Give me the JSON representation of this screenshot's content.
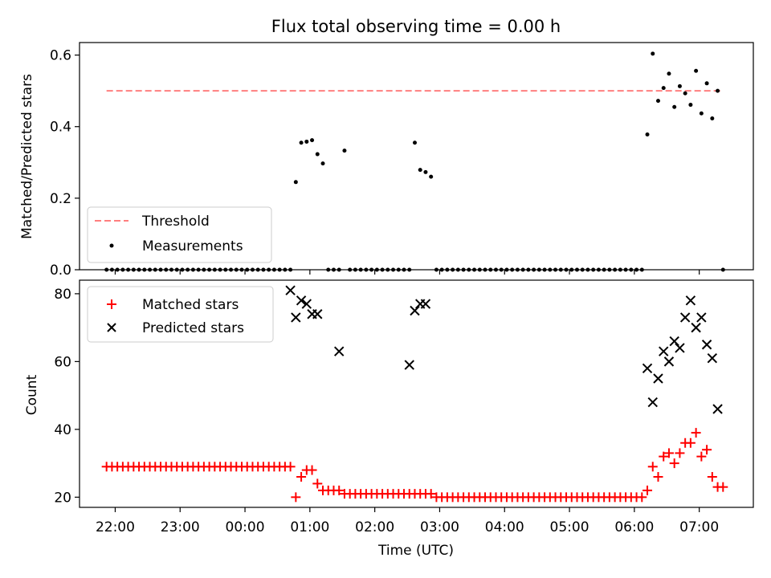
{
  "chart_data": [
    {
      "type": "scatter",
      "title": "Flux total observing time = 0.00 h",
      "xlabel": "",
      "ylabel": "Matched/Predicted stars",
      "xlim": [
        "21:27",
        "07:50"
      ],
      "ylim": [
        0.0,
        0.635
      ],
      "yticks": [
        0.0,
        0.2,
        0.4,
        0.6
      ],
      "ytick_labels": [
        "0.0",
        "0.2",
        "0.4",
        "0.6"
      ],
      "threshold": {
        "name": "Threshold",
        "color": "#ff7f7f",
        "value": 0.5,
        "x_range": [
          "21:52",
          "07:20"
        ]
      },
      "series": [
        {
          "name": "Measurements",
          "color": "#000000",
          "marker": "dot",
          "x": [
            "21:52",
            "21:57",
            "22:02",
            "22:07",
            "22:12",
            "22:17",
            "22:22",
            "22:27",
            "22:32",
            "22:37",
            "22:42",
            "22:47",
            "22:52",
            "22:57",
            "23:02",
            "23:07",
            "23:12",
            "23:17",
            "23:22",
            "23:27",
            "23:32",
            "23:37",
            "23:42",
            "23:47",
            "23:52",
            "23:57",
            "00:02",
            "00:07",
            "00:12",
            "00:17",
            "00:22",
            "00:27",
            "00:32",
            "00:37",
            "00:42",
            "00:47",
            "00:52",
            "00:57",
            "01:02",
            "01:07",
            "01:12",
            "01:17",
            "01:22",
            "01:27",
            "01:32",
            "01:37",
            "01:42",
            "01:47",
            "01:52",
            "01:57",
            "02:02",
            "02:07",
            "02:12",
            "02:17",
            "02:22",
            "02:27",
            "02:32",
            "02:37",
            "02:42",
            "02:47",
            "02:52",
            "02:57",
            "03:02",
            "03:07",
            "03:12",
            "03:17",
            "03:22",
            "03:27",
            "03:32",
            "03:37",
            "03:42",
            "03:47",
            "03:52",
            "03:57",
            "04:02",
            "04:07",
            "04:12",
            "04:17",
            "04:22",
            "04:27",
            "04:32",
            "04:37",
            "04:42",
            "04:47",
            "04:52",
            "04:57",
            "05:02",
            "05:07",
            "05:12",
            "05:17",
            "05:22",
            "05:27",
            "05:32",
            "05:37",
            "05:42",
            "05:47",
            "05:52",
            "05:57",
            "06:02",
            "06:07",
            "06:12",
            "06:17",
            "06:22",
            "06:27",
            "06:32",
            "06:37",
            "06:42",
            "06:47",
            "06:52",
            "06:57",
            "07:02",
            "07:07",
            "07:12",
            "07:17",
            "07:22"
          ],
          "y": [
            0,
            0,
            0,
            0,
            0,
            0,
            0,
            0,
            0,
            0,
            0,
            0,
            0,
            0,
            0,
            0,
            0,
            0,
            0,
            0,
            0,
            0,
            0,
            0,
            0,
            0,
            0,
            0,
            0,
            0,
            0,
            0,
            0,
            0,
            0,
            0.245,
            0.355,
            0.358,
            0.362,
            0.323,
            0.297,
            0,
            0,
            0,
            0.333,
            0,
            0,
            0,
            0,
            0,
            0,
            0,
            0,
            0,
            0,
            0,
            0,
            0.355,
            0.279,
            0.273,
            0.26,
            0,
            0,
            0,
            0,
            0,
            0,
            0,
            0,
            0,
            0,
            0,
            0,
            0,
            0,
            0,
            0,
            0,
            0,
            0,
            0,
            0,
            0,
            0,
            0,
            0,
            0,
            0,
            0,
            0,
            0,
            0,
            0,
            0,
            0,
            0,
            0,
            0,
            0,
            0,
            0.378,
            0.604,
            0.472,
            0.508,
            0.548,
            0.455,
            0.513,
            0.493,
            0.461,
            0.556,
            0.437,
            0.521,
            0.423,
            0.5,
            0
          ]
        }
      ],
      "legend": {
        "position": "lower-left",
        "entries": [
          "Threshold",
          "Measurements"
        ]
      }
    },
    {
      "type": "scatter",
      "xlabel": "Time (UTC)",
      "ylabel": "Count",
      "xlim": [
        "21:27",
        "07:50"
      ],
      "ylim": [
        17,
        84
      ],
      "yticks": [
        20,
        40,
        60,
        80
      ],
      "ytick_labels": [
        "20",
        "40",
        "60",
        "80"
      ],
      "xticks": [
        "22:00",
        "23:00",
        "00:00",
        "01:00",
        "02:00",
        "03:00",
        "04:00",
        "05:00",
        "06:00",
        "07:00"
      ],
      "series": [
        {
          "name": "Matched stars",
          "color": "#ff0000",
          "marker": "plus",
          "x": [
            "21:52",
            "21:57",
            "22:02",
            "22:07",
            "22:12",
            "22:17",
            "22:22",
            "22:27",
            "22:32",
            "22:37",
            "22:42",
            "22:47",
            "22:52",
            "22:57",
            "23:02",
            "23:07",
            "23:12",
            "23:17",
            "23:22",
            "23:27",
            "23:32",
            "23:37",
            "23:42",
            "23:47",
            "23:52",
            "23:57",
            "00:02",
            "00:07",
            "00:12",
            "00:17",
            "00:22",
            "00:27",
            "00:32",
            "00:37",
            "00:42",
            "00:47",
            "00:52",
            "00:57",
            "01:02",
            "01:07",
            "01:12",
            "01:17",
            "01:22",
            "01:27",
            "01:32",
            "01:37",
            "01:42",
            "01:47",
            "01:52",
            "01:57",
            "02:02",
            "02:07",
            "02:12",
            "02:17",
            "02:22",
            "02:27",
            "02:32",
            "02:37",
            "02:42",
            "02:47",
            "02:52",
            "02:57",
            "03:02",
            "03:07",
            "03:12",
            "03:17",
            "03:22",
            "03:27",
            "03:32",
            "03:37",
            "03:42",
            "03:47",
            "03:52",
            "03:57",
            "04:02",
            "04:07",
            "04:12",
            "04:17",
            "04:22",
            "04:27",
            "04:32",
            "04:37",
            "04:42",
            "04:47",
            "04:52",
            "04:57",
            "05:02",
            "05:07",
            "05:12",
            "05:17",
            "05:22",
            "05:27",
            "05:32",
            "05:37",
            "05:42",
            "05:47",
            "05:52",
            "05:57",
            "06:02",
            "06:07",
            "06:12",
            "06:17",
            "06:22",
            "06:27",
            "06:32",
            "06:37",
            "06:42",
            "06:47",
            "06:52",
            "06:57",
            "07:02",
            "07:07",
            "07:12",
            "07:17",
            "07:22"
          ],
          "y": [
            29,
            29,
            29,
            29,
            29,
            29,
            29,
            29,
            29,
            29,
            29,
            29,
            29,
            29,
            29,
            29,
            29,
            29,
            29,
            29,
            29,
            29,
            29,
            29,
            29,
            29,
            29,
            29,
            29,
            29,
            29,
            29,
            29,
            29,
            29,
            20,
            26,
            28,
            28,
            24,
            22,
            22,
            22,
            22,
            21,
            21,
            21,
            21,
            21,
            21,
            21,
            21,
            21,
            21,
            21,
            21,
            21,
            21,
            21,
            21,
            21,
            20,
            20,
            20,
            20,
            20,
            20,
            20,
            20,
            20,
            20,
            20,
            20,
            20,
            20,
            20,
            20,
            20,
            20,
            20,
            20,
            20,
            20,
            20,
            20,
            20,
            20,
            20,
            20,
            20,
            20,
            20,
            20,
            20,
            20,
            20,
            20,
            20,
            20,
            20,
            22,
            29,
            26,
            32,
            33,
            30,
            33,
            36,
            36,
            39,
            32,
            34,
            26,
            23,
            23
          ]
        },
        {
          "name": "Predicted stars",
          "color": "#000000",
          "marker": "x",
          "x": [
            "00:42",
            "00:47",
            "00:52",
            "00:57",
            "01:02",
            "01:07",
            "01:27",
            "02:32",
            "02:37",
            "02:42",
            "02:47",
            "06:12",
            "06:17",
            "06:22",
            "06:27",
            "06:32",
            "06:37",
            "06:42",
            "06:47",
            "06:52",
            "06:57",
            "07:02",
            "07:07",
            "07:12",
            "07:17"
          ],
          "y": [
            81,
            73,
            78,
            77,
            74,
            74,
            63,
            59,
            75,
            77,
            77,
            58,
            48,
            55,
            63,
            60,
            66,
            64,
            73,
            78,
            70,
            73,
            65,
            61,
            46
          ]
        }
      ],
      "legend": {
        "position": "upper-left",
        "entries": [
          "Matched stars",
          "Predicted stars"
        ]
      }
    }
  ]
}
